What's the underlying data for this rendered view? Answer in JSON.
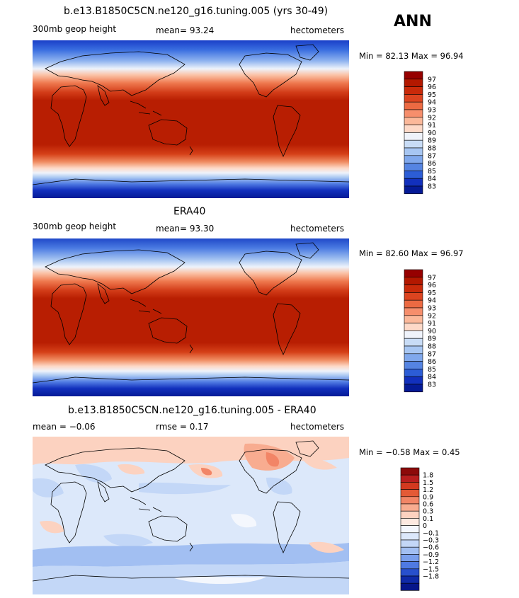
{
  "season": "ANN",
  "panels": [
    {
      "title": "b.e13.B1850C5CN.ne120_g16.tuning.005 (yrs 30-49)",
      "variable": "300mb geop height",
      "stat": "mean=  93.24",
      "units": "hectometers",
      "minmax": "Min =  82.13 Max =  96.94",
      "legend_levels": [
        "97",
        "96",
        "95",
        "94",
        "93",
        "92",
        "91",
        "90",
        "89",
        "88",
        "87",
        "86",
        "85",
        "84",
        "83"
      ]
    },
    {
      "title": "ERA40",
      "variable": "300mb geop height",
      "stat": "mean=  93.30",
      "units": "hectometers",
      "minmax": "Min =  82.60 Max =  96.97",
      "legend_levels": [
        "97",
        "96",
        "95",
        "94",
        "93",
        "92",
        "91",
        "90",
        "89",
        "88",
        "87",
        "86",
        "85",
        "84",
        "83"
      ]
    },
    {
      "title": "b.e13.B1850C5CN.ne120_g16.tuning.005 - ERA40",
      "variable": "mean =  −0.06",
      "stat": "rmse =   0.17",
      "units": "hectometers",
      "minmax": "Min =  −0.58 Max =   0.45",
      "legend_levels": [
        "1.8",
        "1.5",
        "1.2",
        "0.9",
        "0.6",
        "0.3",
        "0.1",
        "0",
        "−0.1",
        "−0.3",
        "−0.6",
        "−0.9",
        "−1.2",
        "−1.5",
        "−1.8"
      ]
    }
  ],
  "colors": {
    "abs_scale": [
      "#960000",
      "#b31800",
      "#c92a0a",
      "#dc4420",
      "#ec6a42",
      "#f68e6c",
      "#fbb89a",
      "#fdd9c8",
      "#eff3fb",
      "#c8dcf6",
      "#a7c6f2",
      "#80a8ec",
      "#5584e2",
      "#2c5dd6",
      "#1230bd",
      "#051a96"
    ],
    "diff_scale": [
      "#8c0a0a",
      "#b81e1e",
      "#d3391f",
      "#e45a36",
      "#f28566",
      "#f8ac90",
      "#fcd2c0",
      "#fde9e0",
      "#f4f7fd",
      "#dce8fa",
      "#c3d7f7",
      "#a2bff2",
      "#7a9fec",
      "#4f7ae2",
      "#2850cd",
      "#0f2aa8",
      "#06168a"
    ]
  }
}
